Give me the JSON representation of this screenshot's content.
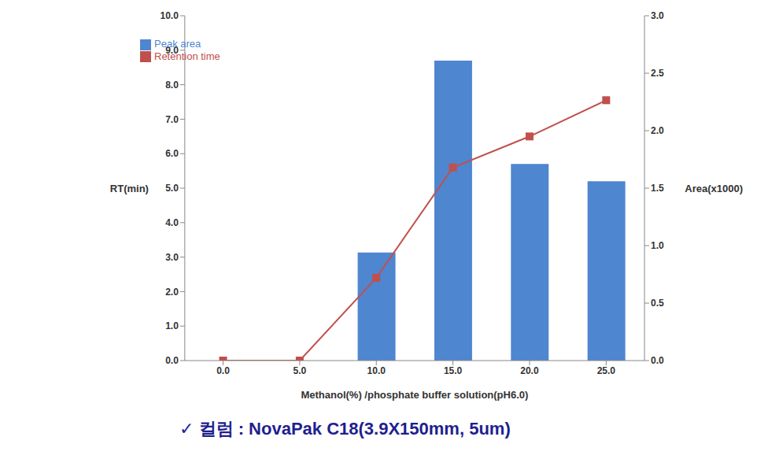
{
  "chart_data": {
    "type": "bar",
    "categories": [
      "0.0",
      "5.0",
      "10.0",
      "15.0",
      "20.0",
      "25.0"
    ],
    "x_label": "Methanol(%) /phosphate buffer solution(pH6.0)",
    "y_label": "RT(min)",
    "y2_label": "Area(x1000)",
    "annotation": "✓ 컬럼 : NovaPak C18(3.9X150mm, 5um)",
    "series": [
      {
        "name": "Peak area",
        "type": "bar",
        "axis": "y2",
        "color": "#4f86d0",
        "values": [
          0,
          0,
          0.94,
          2.61,
          1.71,
          1.56
        ]
      },
      {
        "name": "Retention time",
        "type": "line",
        "color": "#c0504d",
        "marker": "square",
        "values": [
          0.0,
          0.0,
          2.4,
          5.6,
          6.5,
          7.55
        ]
      }
    ],
    "ylim": [
      0,
      10
    ],
    "yticks": [
      {
        "value": 0,
        "label": "0.0"
      },
      {
        "value": 1,
        "label": "1.0"
      },
      {
        "value": 2,
        "label": "2.0"
      },
      {
        "value": 3,
        "label": "3.0"
      },
      {
        "value": 4,
        "label": "4.0"
      },
      {
        "value": 5,
        "label": "5.0"
      },
      {
        "value": 6,
        "label": "6.0"
      },
      {
        "value": 7,
        "label": "7.0"
      },
      {
        "value": 8,
        "label": "8.0"
      },
      {
        "value": 9,
        "label": "9.0"
      },
      {
        "value": 10,
        "label": "10.0"
      }
    ],
    "y2lim": [
      0,
      3
    ],
    "y2ticks": [
      {
        "value": 0,
        "label": "0.0"
      },
      {
        "value": 0.5,
        "label": "0.5"
      },
      {
        "value": 1,
        "label": "1.0"
      },
      {
        "value": 1.5,
        "label": "1.5"
      },
      {
        "value": 2,
        "label": "2.0"
      },
      {
        "value": 2.5,
        "label": "2.5"
      },
      {
        "value": 3,
        "label": "3.0"
      }
    ],
    "legend": "upper left",
    "grid": false
  }
}
